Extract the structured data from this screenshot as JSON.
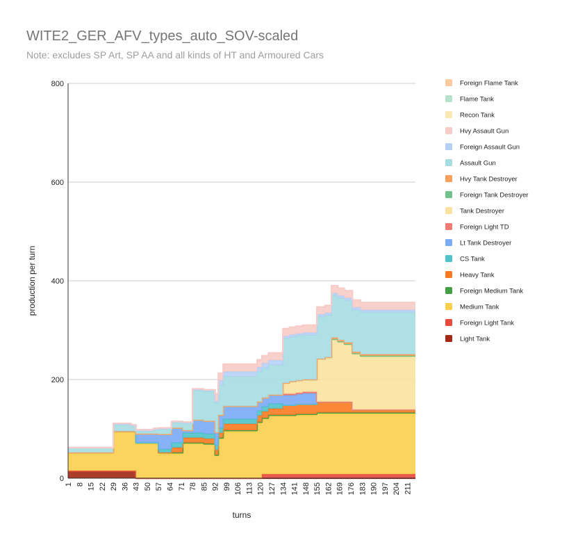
{
  "chart_data": {
    "type": "area",
    "stacked": true,
    "title": "WITE2_GER_AFV_types_auto_SOV-scaled",
    "subtitle": "Note: excludes SP Art, SP AA and all kinds of HT and Armoured Cars",
    "xlabel": "turns",
    "ylabel": "production per turn",
    "ylim": [
      0,
      800
    ],
    "yticks": [
      0,
      200,
      400,
      600,
      800
    ],
    "xlim": [
      1,
      216
    ],
    "xticks": [
      1,
      8,
      15,
      22,
      29,
      36,
      43,
      50,
      57,
      64,
      71,
      78,
      85,
      92,
      99,
      106,
      113,
      120,
      127,
      134,
      141,
      148,
      155,
      162,
      169,
      176,
      183,
      190,
      197,
      204,
      211
    ],
    "grid": true,
    "legend_position": "right",
    "x": [
      1,
      29,
      36,
      40,
      43,
      50,
      54,
      57,
      62,
      65,
      72,
      78,
      85,
      88,
      92,
      94,
      97,
      102,
      106,
      110,
      114,
      118,
      121,
      125,
      130,
      134,
      138,
      142,
      146,
      152,
      155,
      160,
      164,
      168,
      172,
      177,
      182,
      188,
      216
    ],
    "series": [
      {
        "name": "Light Tank",
        "color": "#a52714",
        "values": [
          15,
          15,
          15,
          15,
          0,
          0,
          0,
          0,
          0,
          0,
          0,
          0,
          0,
          0,
          0,
          0,
          0,
          0,
          0,
          0,
          0,
          0,
          0,
          0,
          0,
          0,
          0,
          0,
          0,
          0,
          0,
          0,
          0,
          0,
          0,
          0,
          0,
          0,
          0
        ]
      },
      {
        "name": "Foreign Light Tank",
        "color": "#e84a3c",
        "values": [
          0,
          0,
          0,
          0,
          0,
          0,
          0,
          0,
          0,
          0,
          0,
          0,
          0,
          0,
          0,
          0,
          0,
          0,
          0,
          0,
          0,
          0,
          8,
          8,
          8,
          8,
          8,
          8,
          8,
          8,
          8,
          8,
          8,
          8,
          8,
          8,
          8,
          8,
          8
        ]
      },
      {
        "name": "Medium Tank",
        "color": "#fbcf4e",
        "values": [
          35,
          78,
          78,
          78,
          70,
          70,
          70,
          50,
          50,
          50,
          70,
          70,
          68,
          68,
          45,
          80,
          95,
          95,
          95,
          95,
          95,
          112,
          112,
          118,
          118,
          118,
          118,
          120,
          120,
          120,
          123,
          123,
          123,
          123,
          123,
          123,
          123,
          123,
          123
        ]
      },
      {
        "name": "Foreign Medium Tank",
        "color": "#43a047",
        "values": [
          2,
          2,
          2,
          2,
          2,
          2,
          2,
          2,
          2,
          2,
          2,
          2,
          2,
          2,
          2,
          2,
          2,
          2,
          2,
          2,
          2,
          2,
          2,
          2,
          2,
          2,
          2,
          2,
          2,
          2,
          2,
          2,
          2,
          2,
          2,
          2,
          2,
          2,
          2
        ]
      },
      {
        "name": "Heavy Tank",
        "color": "#fb7a21",
        "values": [
          0,
          0,
          0,
          0,
          0,
          0,
          0,
          0,
          0,
          10,
          10,
          10,
          10,
          10,
          10,
          10,
          13,
          13,
          13,
          13,
          13,
          13,
          13,
          13,
          13,
          20,
          20,
          20,
          20,
          20,
          22,
          22,
          22,
          22,
          22,
          6,
          6,
          6,
          6
        ]
      },
      {
        "name": "CS Tank",
        "color": "#4fc3c8",
        "values": [
          0,
          0,
          0,
          0,
          0,
          0,
          0,
          7,
          7,
          10,
          10,
          10,
          10,
          10,
          10,
          10,
          10,
          10,
          10,
          10,
          10,
          10,
          10,
          10,
          10,
          0,
          0,
          0,
          0,
          0,
          0,
          0,
          0,
          0,
          0,
          0,
          0,
          0,
          0
        ]
      },
      {
        "name": "Lt Tank Destroyer",
        "color": "#7baaf7",
        "values": [
          0,
          0,
          0,
          0,
          18,
          18,
          18,
          30,
          30,
          30,
          5,
          26,
          26,
          26,
          26,
          26,
          26,
          26,
          26,
          26,
          26,
          18,
          18,
          18,
          18,
          20,
          20,
          20,
          22,
          22,
          0,
          0,
          0,
          0,
          0,
          0,
          0,
          0,
          0
        ]
      },
      {
        "name": "Foreign Light TD",
        "color": "#f07b72",
        "values": [
          0,
          0,
          0,
          0,
          0,
          0,
          0,
          0,
          0,
          0,
          0,
          0,
          0,
          0,
          0,
          0,
          0,
          0,
          0,
          0,
          0,
          0,
          0,
          0,
          0,
          3,
          3,
          3,
          3,
          3,
          0,
          0,
          0,
          0,
          0,
          0,
          0,
          0,
          0
        ]
      },
      {
        "name": "Tank Destroyer",
        "color": "#fbe29e",
        "values": [
          0,
          0,
          0,
          0,
          0,
          0,
          0,
          0,
          0,
          0,
          0,
          0,
          0,
          0,
          0,
          0,
          0,
          0,
          0,
          0,
          0,
          0,
          0,
          0,
          0,
          22,
          25,
          25,
          25,
          25,
          87,
          90,
          125,
          120,
          115,
          112,
          107,
          107,
          107
        ]
      },
      {
        "name": "Foreign Tank Destroyer",
        "color": "#71c287",
        "values": [
          0,
          0,
          0,
          0,
          0,
          0,
          0,
          0,
          0,
          0,
          0,
          0,
          0,
          0,
          0,
          0,
          0,
          0,
          0,
          0,
          0,
          0,
          0,
          0,
          0,
          0,
          0,
          0,
          0,
          0,
          0,
          0,
          2,
          2,
          2,
          2,
          2,
          2,
          2
        ]
      },
      {
        "name": "Hvy Tank Destroyer",
        "color": "#fa9f5c",
        "values": [
          0,
          0,
          0,
          0,
          0,
          0,
          0,
          0,
          0,
          0,
          0,
          0,
          0,
          0,
          0,
          0,
          0,
          0,
          0,
          0,
          0,
          0,
          0,
          0,
          0,
          0,
          0,
          0,
          0,
          0,
          0,
          0,
          3,
          3,
          3,
          3,
          3,
          3,
          3
        ]
      },
      {
        "name": "Assault Gun",
        "color": "#a6dde2",
        "values": [
          10,
          13,
          13,
          10,
          5,
          5,
          8,
          10,
          10,
          10,
          14,
          60,
          60,
          60,
          60,
          60,
          60,
          60,
          60,
          60,
          60,
          60,
          60,
          60,
          60,
          90,
          90,
          90,
          90,
          90,
          85,
          85,
          85,
          85,
          85,
          85,
          85,
          85,
          85
        ]
      },
      {
        "name": "Foreign Assault Gun",
        "color": "#b6d0f5",
        "values": [
          0,
          3,
          3,
          3,
          3,
          3,
          3,
          3,
          3,
          3,
          3,
          3,
          3,
          3,
          3,
          10,
          10,
          10,
          10,
          10,
          10,
          10,
          10,
          10,
          10,
          5,
          5,
          5,
          5,
          5,
          5,
          5,
          5,
          5,
          5,
          5,
          5,
          5,
          5
        ]
      },
      {
        "name": "Hvy Assault Gun",
        "color": "#f7cbc7",
        "values": [
          0,
          0,
          0,
          0,
          0,
          0,
          0,
          0,
          0,
          0,
          0,
          0,
          0,
          0,
          15,
          15,
          15,
          15,
          15,
          15,
          15,
          15,
          15,
          15,
          15,
          15,
          15,
          15,
          15,
          15,
          15,
          15,
          15,
          15,
          15,
          15,
          15,
          15,
          15
        ]
      },
      {
        "name": "Recon Tank",
        "color": "#fce8b2",
        "values": [
          0,
          0,
          0,
          0,
          0,
          0,
          0,
          0,
          0,
          0,
          0,
          0,
          0,
          0,
          0,
          0,
          0,
          0,
          0,
          0,
          0,
          0,
          0,
          0,
          0,
          0,
          0,
          0,
          0,
          0,
          0,
          0,
          0,
          0,
          0,
          0,
          0,
          0,
          0
        ]
      },
      {
        "name": "Flame Tank",
        "color": "#b7e1cd",
        "values": [
          0,
          0,
          0,
          0,
          0,
          0,
          0,
          0,
          0,
          0,
          0,
          0,
          0,
          0,
          0,
          0,
          0,
          0,
          0,
          0,
          0,
          0,
          0,
          0,
          0,
          0,
          0,
          0,
          0,
          0,
          0,
          0,
          0,
          0,
          0,
          0,
          0,
          0,
          0
        ]
      },
      {
        "name": "Foreign Flame Tank",
        "color": "#fbc99e",
        "values": [
          0,
          0,
          0,
          0,
          0,
          0,
          0,
          0,
          0,
          0,
          0,
          0,
          0,
          0,
          0,
          0,
          0,
          0,
          0,
          0,
          0,
          0,
          0,
          0,
          0,
          0,
          0,
          0,
          0,
          0,
          0,
          0,
          0,
          0,
          0,
          0,
          0,
          0,
          0
        ]
      }
    ]
  }
}
